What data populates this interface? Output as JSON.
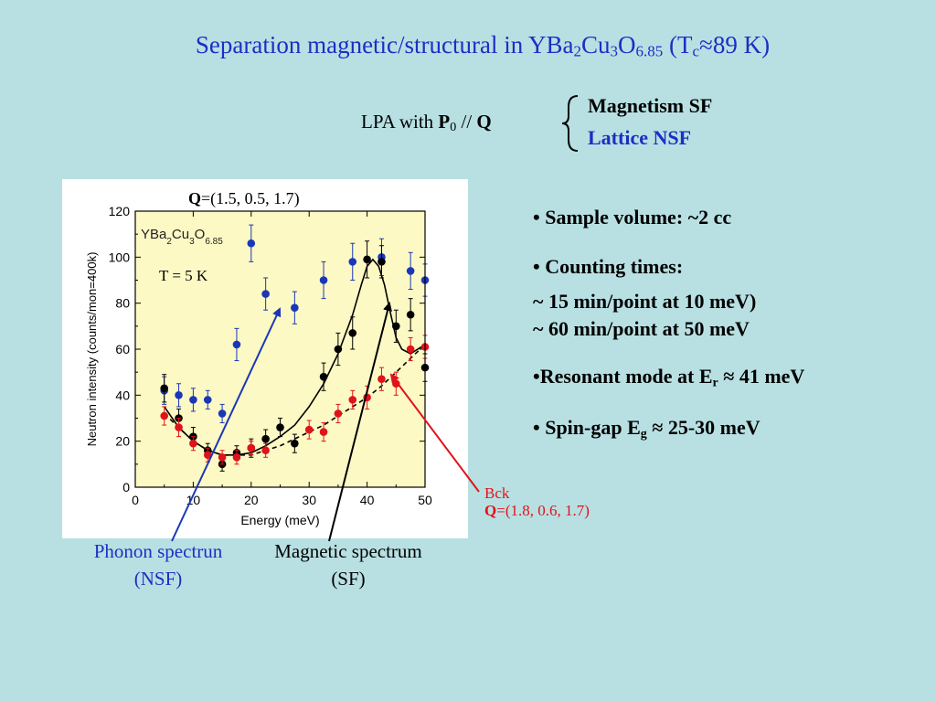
{
  "slide": {
    "title_parts": [
      "Separation magnetic/structural in YBa",
      "2",
      "Cu",
      "3",
      "O",
      "6.85",
      " (T",
      "c",
      "≈89 K)"
    ],
    "lpa": {
      "prefix": "LPA  with ",
      "p_bold": "P",
      "p_sub": "0",
      "mid": " // ",
      "q_bold": "Q"
    },
    "modes": [
      {
        "text": "Magnetism   SF",
        "color": "#000000"
      },
      {
        "text": "Lattice   NSF",
        "color": "#1b2fc4"
      }
    ],
    "bullets": {
      "sample_volume": "• Sample volume: ~2 cc",
      "counting_times": "• Counting times:",
      "count_10": "~ 15 min/point at 10 meV)",
      "count_50": "~ 60 min/point at 50 meV",
      "resonant_pre": "•Resonant mode at E",
      "resonant_sub": "r",
      "resonant_post": " ≈  41 meV",
      "spin_pre": "• Spin-gap E",
      "spin_sub": "g",
      "spin_post": " ≈ 25-30 meV"
    },
    "q_top": {
      "bold": "Q",
      "text": "=(1.5, 0.5, 1.7)"
    },
    "bck": {
      "label": "Bck",
      "q_bold": "Q",
      "q_text": "=(1.8,  0.6, 1.7)"
    },
    "captions": {
      "phonon_line1": "Phonon spectrun",
      "phonon_line2": "(NSF)",
      "magnetic_line1": "Magnetic spectrum",
      "magnetic_line2": "(SF)"
    },
    "colors": {
      "background": "#b8e0e3",
      "title": "#1b2fc4",
      "plot_area": "#fdf9c4",
      "nsf_series": "#1a37b8",
      "sf_series": "#000000",
      "bck_series": "#e0131a"
    }
  },
  "chart_data": {
    "type": "scatter",
    "xlabel": "Energy (meV)",
    "ylabel": "Neutron intensity (counts/mon=400k)",
    "sample_label": {
      "main": "YBa",
      "s1": "2",
      "mid1": "Cu",
      "s2": "3",
      "mid2": "O",
      "s3": "6.85"
    },
    "temperature_label": "T = 5 K",
    "xlim": [
      0,
      50
    ],
    "ylim": [
      0,
      120
    ],
    "xticks": [
      0,
      10,
      20,
      30,
      40,
      50
    ],
    "yticks": [
      0,
      20,
      40,
      60,
      80,
      100,
      120
    ],
    "grid": false,
    "series": [
      {
        "key": "nsf",
        "color": "#1a37b8",
        "marker": "circle",
        "x": [
          5,
          7.5,
          10,
          12.5,
          15,
          17.5,
          20,
          22.5,
          27.5,
          32.5,
          37.5,
          42.5,
          47.5,
          50
        ],
        "y": [
          42,
          40,
          38,
          38,
          32,
          62,
          106,
          84,
          78,
          90,
          98,
          100,
          94,
          90
        ],
        "err": [
          6,
          5,
          5,
          4,
          4,
          7,
          8,
          7,
          7,
          8,
          8,
          8,
          8,
          7
        ]
      },
      {
        "key": "sf",
        "color": "#000000",
        "marker": "circle",
        "x": [
          5,
          7.5,
          10,
          12.5,
          15,
          17.5,
          20,
          22.5,
          25,
          27.5,
          32.5,
          35,
          37.5,
          40,
          42.5,
          45,
          47.5,
          50
        ],
        "y": [
          43,
          30,
          22,
          16,
          10,
          15,
          17,
          21,
          26,
          19,
          48,
          60,
          67,
          99,
          98,
          70,
          75,
          52
        ],
        "err": [
          6,
          4,
          4,
          3,
          3,
          3,
          4,
          4,
          4,
          4,
          6,
          7,
          7,
          8,
          7,
          7,
          7,
          6
        ]
      },
      {
        "key": "bck",
        "color": "#e0131a",
        "marker": "circle",
        "x": [
          5,
          7.5,
          10,
          12.5,
          15,
          17.5,
          20,
          22.5,
          30,
          32.5,
          35,
          37.5,
          40,
          42.5,
          45,
          47.5,
          50
        ],
        "y": [
          31,
          26,
          19,
          14,
          13,
          13,
          17,
          16,
          25,
          24,
          32,
          38,
          39,
          47,
          45,
          60,
          61
        ],
        "err": [
          4,
          4,
          3,
          3,
          3,
          3,
          3,
          3,
          4,
          4,
          4,
          4,
          5,
          5,
          5,
          5,
          5
        ]
      }
    ],
    "fits": [
      {
        "key": "sf_fit",
        "color": "#000000",
        "style": "solid",
        "x": [
          5,
          7.5,
          10,
          12.5,
          15,
          17.5,
          20,
          22.5,
          25,
          27.5,
          30,
          32.5,
          35,
          37.5,
          39,
          40,
          41,
          42,
          43,
          44,
          45,
          46,
          47.5,
          50
        ],
        "y": [
          35,
          26,
          20,
          16,
          14,
          14,
          15,
          18,
          22,
          27,
          35,
          45,
          58,
          75,
          88,
          96,
          99,
          96,
          88,
          76,
          65,
          60,
          58,
          62
        ]
      },
      {
        "key": "bck_fit",
        "color": "#000000",
        "style": "dashed",
        "x": [
          5,
          7.5,
          10,
          12.5,
          15,
          17.5,
          20,
          22.5,
          25,
          27.5,
          30,
          32.5,
          35,
          37.5,
          40,
          42.5,
          45,
          47.5,
          50
        ],
        "y": [
          32,
          26,
          20,
          16,
          14,
          14,
          14,
          16,
          18,
          21,
          24,
          27,
          31,
          35,
          39,
          44,
          50,
          56,
          62
        ]
      }
    ]
  }
}
